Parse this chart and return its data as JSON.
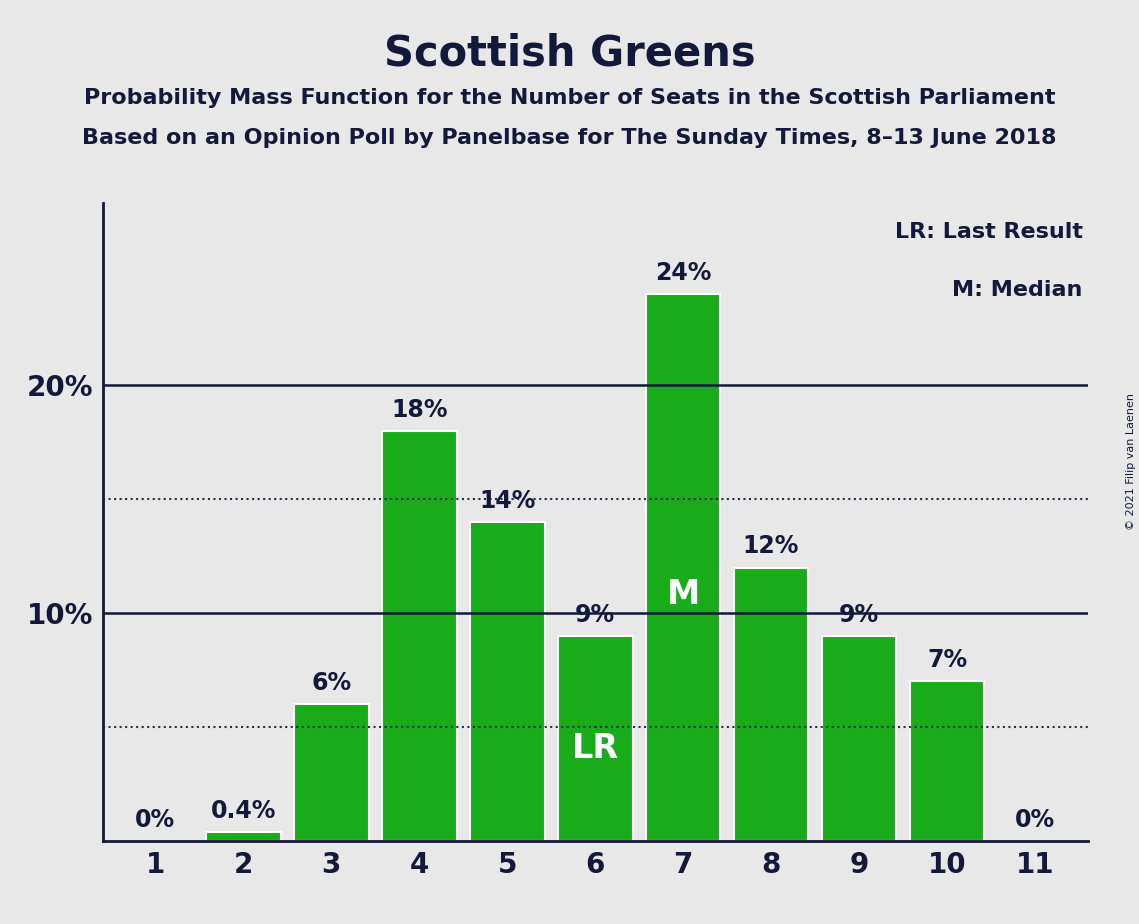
{
  "title": "Scottish Greens",
  "subtitle1": "Probability Mass Function for the Number of Seats in the Scottish Parliament",
  "subtitle2": "Based on an Opinion Poll by Panelbase for The Sunday Times, 8–13 June 2018",
  "copyright": "© 2021 Filip van Laenen",
  "categories": [
    1,
    2,
    3,
    4,
    5,
    6,
    7,
    8,
    9,
    10,
    11
  ],
  "values": [
    0,
    0.4,
    6,
    18,
    14,
    9,
    24,
    12,
    9,
    7,
    0
  ],
  "labels": [
    "0%",
    "0.4%",
    "6%",
    "18%",
    "14%",
    "9%",
    "24%",
    "12%",
    "9%",
    "7%",
    "0%"
  ],
  "bar_color": "#1aab1a",
  "bar_edge_color": "#ffffff",
  "background_color": "#e8e8e8",
  "title_color": "#12193a",
  "label_color": "#12193a",
  "LR_bar_idx": 5,
  "M_bar_idx": 6,
  "dotted_lines": [
    5,
    15
  ],
  "solid_lines": [
    10,
    20
  ],
  "ylim": [
    0,
    28
  ],
  "yticks": [
    10,
    20
  ],
  "ytick_labels": [
    "10%",
    "20%"
  ],
  "legend_text": [
    "LR: Last Result",
    "M: Median"
  ],
  "title_fontsize": 30,
  "subtitle_fontsize": 16,
  "axis_fontsize": 20,
  "bar_label_fontsize": 17,
  "legend_fontsize": 16,
  "inner_label_fontsize": 24
}
